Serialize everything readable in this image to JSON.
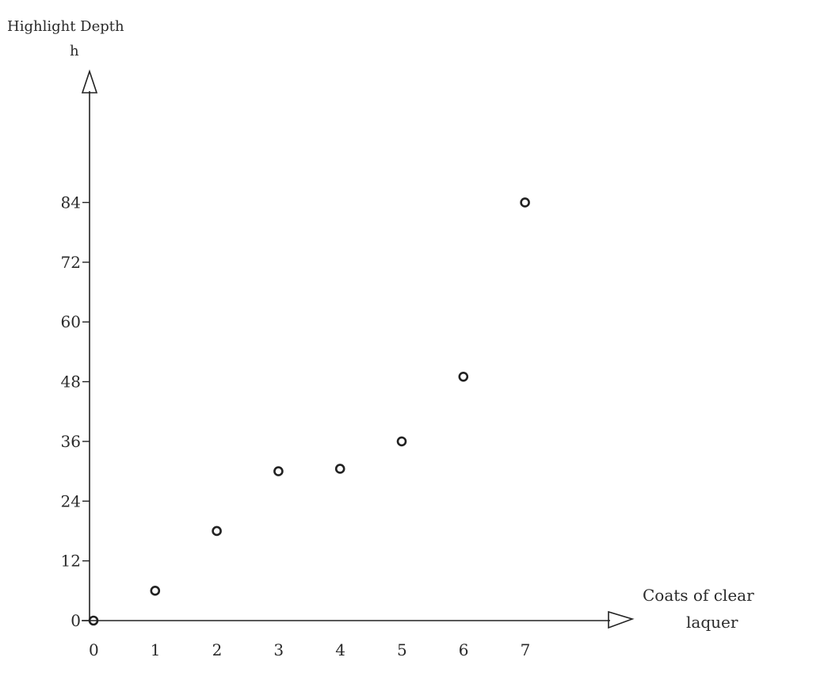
{
  "chart_data": {
    "type": "scatter",
    "title": "",
    "ylabel": [
      "Highlight Depth",
      "h"
    ],
    "xlabel": [
      "Coats of clear",
      "laquer"
    ],
    "x_ticks": [
      0,
      1,
      2,
      3,
      4,
      5,
      6,
      7
    ],
    "y_ticks": [
      0,
      12,
      24,
      36,
      48,
      60,
      72,
      84
    ],
    "xlim": [
      0,
      8.6
    ],
    "ylim": [
      0,
      102
    ],
    "grid": false,
    "points": [
      {
        "x": 0,
        "y": 0
      },
      {
        "x": 1,
        "y": 6
      },
      {
        "x": 2,
        "y": 18
      },
      {
        "x": 3,
        "y": 30
      },
      {
        "x": 4,
        "y": 30.5
      },
      {
        "x": 5,
        "y": 36
      },
      {
        "x": 6,
        "y": 49
      },
      {
        "x": 7,
        "y": 84
      }
    ],
    "colors": {
      "ink": "#222222"
    }
  }
}
